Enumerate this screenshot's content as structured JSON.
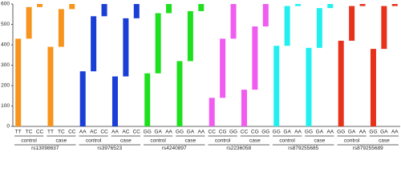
{
  "chart_data": {
    "type": "bar",
    "stacked": true,
    "ylim": [
      0,
      600
    ],
    "yticks": [
      0,
      100,
      200,
      300,
      400,
      500,
      600
    ],
    "groups": [
      "control",
      "case"
    ],
    "snps": [
      {
        "name": "rs13098637",
        "color": "#f7941d",
        "genotypes": [
          "TT",
          "TC",
          "CC"
        ],
        "control": [
          430,
          155,
          15
        ],
        "case": [
          390,
          185,
          25
        ]
      },
      {
        "name": "rs3976523",
        "color": "#1a3fd6",
        "genotypes": [
          "AA",
          "AC",
          "CC"
        ],
        "control": [
          270,
          270,
          60
        ],
        "case": [
          245,
          285,
          70
        ]
      },
      {
        "name": "rs4240897",
        "color": "#1fe01f",
        "genotypes": [
          "GG",
          "GA",
          "AA"
        ],
        "control": [
          260,
          295,
          45
        ],
        "case": [
          320,
          245,
          35
        ]
      },
      {
        "name": "rs2236058",
        "color": "#f05cf0",
        "genotypes": [
          "CC",
          "CG",
          "GG"
        ],
        "control": [
          140,
          290,
          170
        ],
        "case": [
          180,
          310,
          110
        ]
      },
      {
        "name": "rs879255685",
        "color": "#22f0f0",
        "genotypes": [
          "GG",
          "GA",
          "AA"
        ],
        "control": [
          395,
          195,
          10
        ],
        "case": [
          385,
          195,
          20
        ]
      },
      {
        "name": "rs879255689",
        "color": "#e8311a",
        "genotypes": [
          "GG",
          "GA",
          "AA"
        ],
        "control": [
          420,
          170,
          10
        ],
        "case": [
          380,
          210,
          10
        ]
      }
    ]
  }
}
